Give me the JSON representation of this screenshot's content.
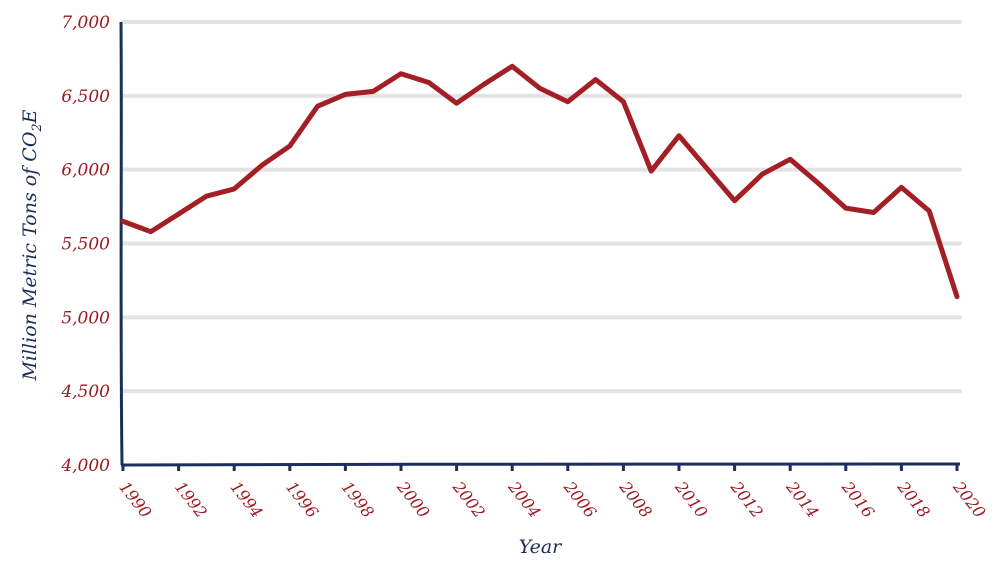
{
  "chart_data": {
    "type": "line",
    "title": "",
    "xlabel": "Year",
    "ylabel": "Million Metric Tons of CO",
    "ylabel_sub": "2",
    "ylabel_suffix": "E",
    "ylim": [
      4000,
      7000
    ],
    "xlim": [
      1990,
      2020
    ],
    "grid": true,
    "y_ticks": [
      4000,
      4500,
      5000,
      5500,
      6000,
      6500,
      7000
    ],
    "y_tick_labels": [
      "4,000",
      "4,500",
      "5,000",
      "5,500",
      "6,000",
      "6,500",
      "7,000"
    ],
    "x_ticks": [
      1990,
      1992,
      1994,
      1996,
      1998,
      2000,
      2002,
      2004,
      2006,
      2008,
      2010,
      2012,
      2014,
      2016,
      2018,
      2020
    ],
    "x_tick_labels": [
      "1990",
      "1992",
      "1994",
      "1996",
      "1998",
      "2000",
      "2002",
      "2004",
      "2006",
      "2008",
      "2010",
      "2012",
      "2014",
      "2016",
      "2018",
      "2020"
    ],
    "x": [
      1990,
      1991,
      1992,
      1993,
      1994,
      1995,
      1996,
      1997,
      1998,
      1999,
      2000,
      2001,
      2002,
      2003,
      2004,
      2005,
      2006,
      2007,
      2008,
      2009,
      2010,
      2011,
      2012,
      2013,
      2014,
      2015,
      2016,
      2017,
      2018,
      2019,
      2020
    ],
    "series": [
      {
        "values": [
          5650,
          5580,
          5700,
          5820,
          5870,
          6030,
          6160,
          6430,
          6510,
          6530,
          6650,
          6590,
          6450,
          6580,
          6700,
          6550,
          6460,
          6610,
          6460,
          5990,
          6230,
          6010,
          5790,
          5970,
          6070,
          5910,
          5740,
          5710,
          5880,
          5720,
          5140
        ]
      }
    ],
    "colors": {
      "line": "#a31f25",
      "axis": "#1c2f5a",
      "tick_labels": "#9a1c22",
      "grid": "#e3e3e3"
    }
  }
}
